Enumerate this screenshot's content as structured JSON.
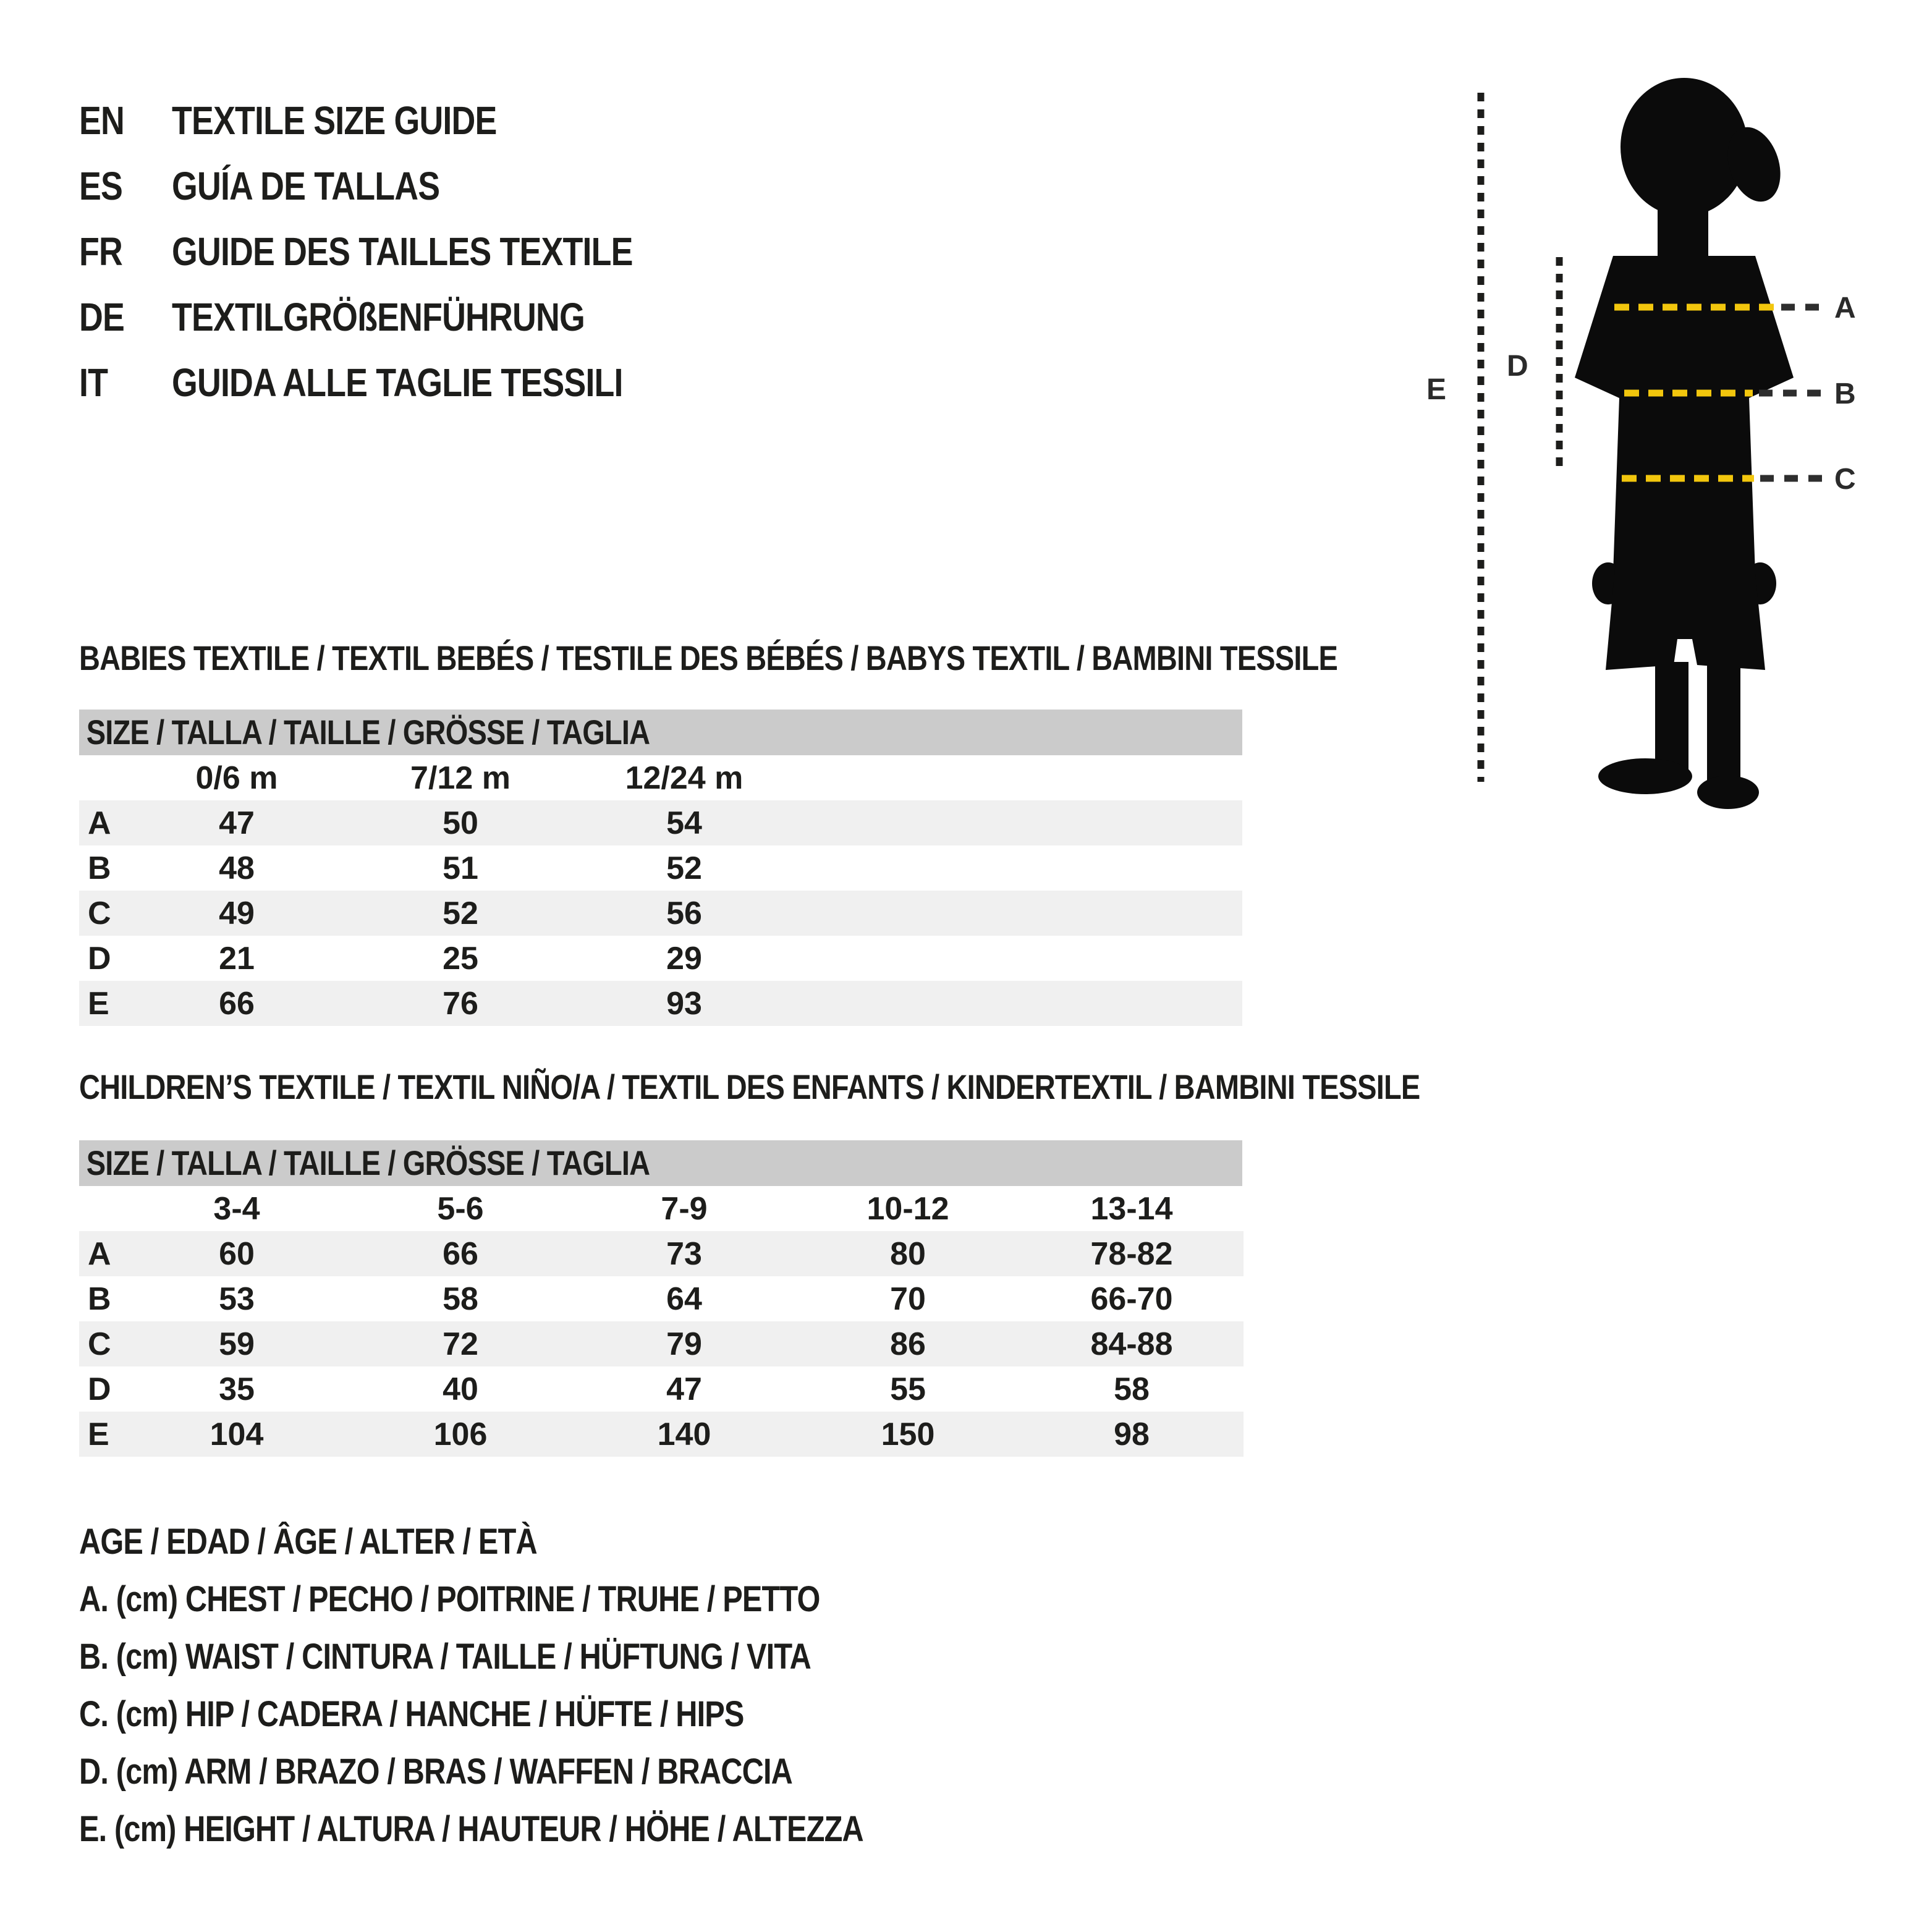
{
  "languages": [
    {
      "code": "EN",
      "label": "TEXTILE SIZE GUIDE"
    },
    {
      "code": "ES",
      "label": "GUÍA DE TALLAS"
    },
    {
      "code": "FR",
      "label": "GUIDE DES TAILLES TEXTILE"
    },
    {
      "code": "DE",
      "label": "TEXTILGRÖßENFÜHRUNG"
    },
    {
      "code": "IT",
      "label": "GUIDA ALLE TAGLIE TESSILI"
    }
  ],
  "figure": {
    "labels": {
      "a": "A",
      "b": "B",
      "c": "C",
      "d": "D",
      "e": "E"
    },
    "colors": {
      "silhouette": "#0b0b0b",
      "guide_yellow": "#F2C60D",
      "guide_dark": "#2e2e2e",
      "dotted_line": "#1d1d1b"
    }
  },
  "babies": {
    "title": "BABIES TEXTILE / TEXTIL BEBÉS / TESTILE DES BÉBÉS / BABYS TEXTIL / BAMBINI TESSILE",
    "size_header": "SIZE / TALLA / TAILLE / GRÖSSE / TAGLIA",
    "columns": [
      "0/6 m",
      "7/12 m",
      "12/24 m"
    ],
    "rows": [
      {
        "label": "A",
        "values": [
          "47",
          "50",
          "54"
        ]
      },
      {
        "label": "B",
        "values": [
          "48",
          "51",
          "52"
        ]
      },
      {
        "label": "C",
        "values": [
          "49",
          "52",
          "56"
        ]
      },
      {
        "label": "D",
        "values": [
          "21",
          "25",
          "29"
        ]
      },
      {
        "label": "E",
        "values": [
          "66",
          "76",
          "93"
        ]
      }
    ]
  },
  "children": {
    "title": "CHILDREN’S TEXTILE / TEXTIL NIÑO/A / TEXTIL DES ENFANTS / KINDERTEXTIL / BAMBINI TESSILE",
    "size_header": "SIZE / TALLA / TAILLE / GRÖSSE / TAGLIA",
    "columns": [
      "3-4",
      "5-6",
      "7-9",
      "10-12",
      "13-14"
    ],
    "rows": [
      {
        "label": "A",
        "values": [
          "60",
          "66",
          "73",
          "80",
          "78-82"
        ]
      },
      {
        "label": "B",
        "values": [
          "53",
          "58",
          "64",
          "70",
          "66-70"
        ]
      },
      {
        "label": "C",
        "values": [
          "59",
          "72",
          "79",
          "86",
          "84-88"
        ]
      },
      {
        "label": "D",
        "values": [
          "35",
          "40",
          "47",
          "55",
          "58"
        ]
      },
      {
        "label": "E",
        "values": [
          "104",
          "106",
          "140",
          "150",
          "98"
        ]
      }
    ]
  },
  "legend": {
    "lines": [
      "AGE / EDAD / ÂGE / ALTER / ETÀ",
      "A. (cm) CHEST / PECHO / POITRINE / TRUHE / PETTO",
      "B. (cm) WAIST / CINTURA / TAILLE / HÜFTUNG / VITA",
      "C. (cm) HIP / CADERA / HANCHE / HÜFTE / HIPS",
      "D. (cm) ARM / BRAZO / BRAS / WAFFEN / BRACCIA",
      "E. (cm) HEIGHT / ALTURA / HAUTEUR / HÖHE / ALTEZZA"
    ]
  },
  "style": {
    "header_gray": "#cbcbcb",
    "row_alt": "#f0f0f0"
  }
}
